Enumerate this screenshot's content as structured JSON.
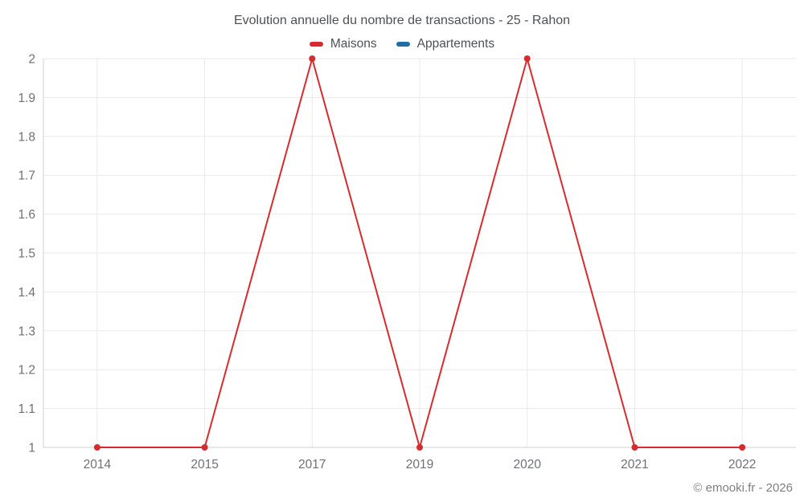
{
  "header": {
    "title": "Evolution annuelle du nombre de transactions - 25 - Rahon"
  },
  "legend": {
    "items": [
      {
        "label": "Maisons",
        "color": "#d62b2f"
      },
      {
        "label": "Appartements",
        "color": "#1c6ea4"
      }
    ]
  },
  "footer": {
    "copyright": "© emooki.fr - 2026"
  },
  "chart_data": {
    "type": "line",
    "title": "Evolution annuelle du nombre de transactions - 25 - Rahon",
    "categories": [
      "2014",
      "2015",
      "2017",
      "2019",
      "2020",
      "2021",
      "2022"
    ],
    "series": [
      {
        "name": "Maisons",
        "color": "#d62b2f",
        "values": [
          1,
          1,
          2,
          1,
          2,
          1,
          1
        ]
      },
      {
        "name": "Appartements",
        "color": "#1c6ea4",
        "values": []
      }
    ],
    "xlabel": "",
    "ylabel": "",
    "ylim": [
      1,
      2
    ],
    "yticks": [
      1,
      1.1,
      1.2,
      1.3,
      1.4,
      1.5,
      1.6,
      1.7,
      1.8,
      1.9,
      2
    ],
    "ytick_labels": [
      "1",
      "1.1",
      "1.2",
      "1.3",
      "1.4",
      "1.5",
      "1.6",
      "1.7",
      "1.8",
      "1.9",
      "2"
    ],
    "grid": true,
    "legend_position": "top",
    "colors": {
      "gridline": "#e9e9e9",
      "axis_line": "#cfd2d6",
      "tick_label": "#6c7078",
      "title_text": "#4d5156",
      "background": "#ffffff"
    }
  }
}
